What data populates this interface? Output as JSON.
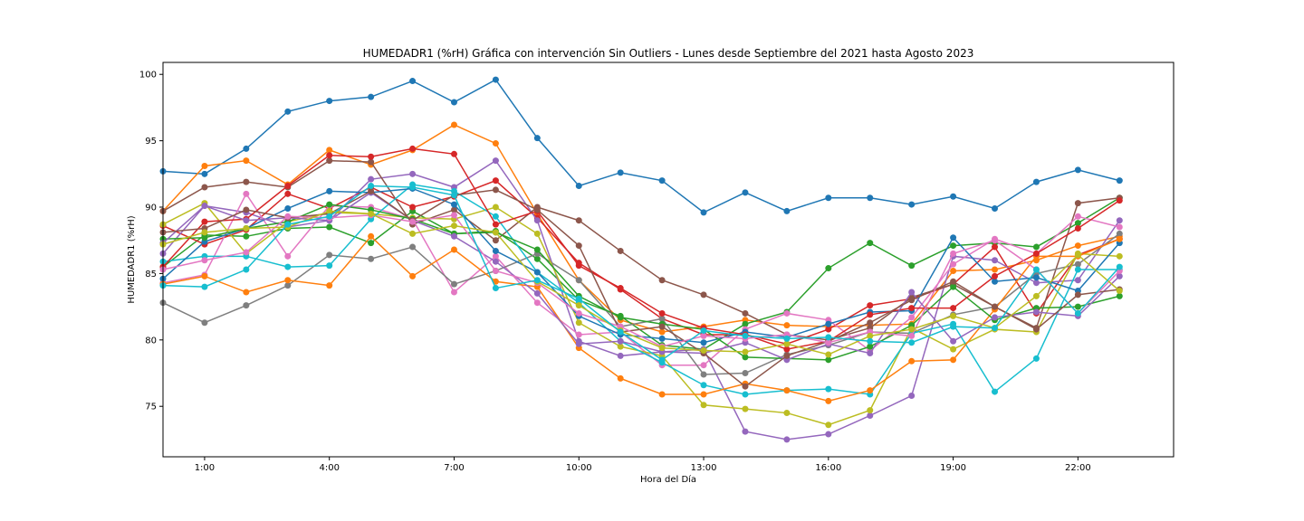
{
  "chart_data": {
    "type": "line",
    "title": "HUMEDADR1 (%rH) Gráfica con intervención Sin Outliers - Lunes desde Septiembre del 2021 hasta Agosto 2023",
    "xlabel": "Hora del Día",
    "ylabel": "HUMEDADR1 (%rH)",
    "xlim": [
      0,
      24.3
    ],
    "ylim": [
      71.2,
      100.9
    ],
    "x_ticks": [
      1,
      4,
      7,
      10,
      13,
      16,
      19,
      22
    ],
    "x_tick_labels": [
      "1:00",
      "4:00",
      "7:00",
      "10:00",
      "13:00",
      "16:00",
      "19:00",
      "22:00"
    ],
    "y_ticks": [
      75,
      80,
      85,
      90,
      95,
      100
    ],
    "y_tick_labels": [
      "75",
      "80",
      "85",
      "90",
      "95",
      "100"
    ],
    "grid": false,
    "legend": "none",
    "x": [
      0,
      1,
      2,
      3,
      4,
      5,
      6,
      7,
      8,
      9,
      10,
      11,
      12,
      13,
      14,
      15,
      16,
      17,
      18,
      19,
      20,
      21,
      22,
      23
    ],
    "series": [
      {
        "color": "#1f77b4",
        "values": [
          92.7,
          92.5,
          94.4,
          97.2,
          98.0,
          98.3,
          99.5,
          97.9,
          99.6,
          95.2,
          91.6,
          92.6,
          92.0,
          89.6,
          91.1,
          89.7,
          90.7,
          90.7,
          90.2,
          90.8,
          89.9,
          91.9,
          92.8,
          92.0
        ]
      },
      {
        "color": "#ff7f0e",
        "values": [
          89.7,
          93.1,
          93.5,
          91.7,
          94.3,
          93.2,
          94.3,
          96.2,
          94.8,
          89.5,
          84.5,
          81.5,
          80.6,
          81.0,
          81.5,
          81.1,
          81.0,
          81.1,
          81.2,
          85.2,
          85.3,
          86.0,
          87.1,
          87.8
        ]
      },
      {
        "color": "#2ca02c",
        "values": [
          85.5,
          87.9,
          87.8,
          88.4,
          88.5,
          87.3,
          89.7,
          88.0,
          88.2,
          86.1,
          83.0,
          81.8,
          79.6,
          79.3,
          81.2,
          82.1,
          85.4,
          87.3,
          85.6,
          87.1,
          87.3,
          87.0,
          88.8,
          90.7
        ]
      },
      {
        "color": "#d62728",
        "values": [
          88.6,
          87.2,
          88.3,
          91.0,
          89.9,
          91.5,
          90.0,
          90.8,
          92.0,
          89.2,
          85.8,
          83.8,
          81.6,
          80.4,
          80.4,
          79.7,
          80.8,
          82.6,
          83.1,
          84.2,
          87.0,
          82.0,
          86.4,
          87.6
        ]
      },
      {
        "color": "#9467bd",
        "values": [
          86.5,
          90.1,
          89.6,
          88.5,
          89.0,
          92.1,
          92.5,
          91.5,
          93.5,
          89.0,
          79.9,
          78.8,
          79.1,
          79.3,
          73.1,
          72.5,
          72.9,
          74.3,
          75.8,
          86.3,
          86.0,
          84.3,
          84.5,
          89.0
        ]
      },
      {
        "color": "#8c564b",
        "values": [
          89.7,
          91.5,
          91.9,
          91.5,
          93.5,
          93.4,
          88.7,
          89.8,
          87.5,
          90.0,
          89.0,
          86.7,
          84.5,
          83.4,
          82.0,
          80.4,
          80.0,
          80.9,
          83.2,
          84.2,
          82.5,
          80.9,
          90.3,
          90.7
        ]
      },
      {
        "color": "#e377c2",
        "values": [
          84.3,
          84.9,
          91.0,
          86.3,
          90.1,
          90.0,
          89.1,
          83.6,
          86.3,
          82.8,
          80.4,
          80.6,
          78.1,
          78.1,
          80.8,
          82.0,
          81.5,
          79.2,
          81.7,
          85.7,
          87.6,
          86.5,
          89.3,
          88.5
        ]
      },
      {
        "color": "#7f7f7f",
        "values": [
          82.8,
          81.3,
          82.6,
          84.1,
          86.4,
          86.1,
          87.0,
          84.2,
          85.2,
          86.5,
          84.5,
          81.0,
          81.6,
          77.4,
          77.5,
          78.9,
          79.6,
          80.6,
          80.5,
          81.9,
          82.5,
          85.0,
          85.7,
          88.0
        ]
      },
      {
        "color": "#bcbd22",
        "values": [
          88.7,
          90.3,
          86.5,
          88.9,
          89.6,
          89.5,
          89.2,
          89.1,
          90.0,
          88.0,
          81.3,
          79.5,
          78.8,
          75.1,
          74.8,
          74.5,
          73.6,
          74.7,
          80.9,
          79.3,
          80.8,
          80.6,
          86.5,
          86.3
        ]
      },
      {
        "color": "#17becf",
        "values": [
          85.9,
          86.3,
          86.3,
          85.5,
          85.6,
          89.1,
          91.7,
          91.2,
          89.3,
          85.1,
          82.8,
          79.9,
          78.3,
          76.6,
          75.9,
          76.2,
          76.3,
          75.9,
          80.5,
          81.2,
          76.1,
          78.6,
          85.3,
          85.3
        ]
      },
      {
        "color": "#1f77b4",
        "values": [
          84.6,
          87.4,
          88.4,
          89.9,
          91.2,
          91.1,
          91.4,
          90.2,
          86.7,
          85.1,
          81.8,
          80.4,
          80.1,
          79.8,
          80.6,
          80.2,
          81.2,
          82.1,
          82.2,
          87.7,
          84.4,
          84.7,
          83.7,
          87.3
        ]
      },
      {
        "color": "#ff7f0e",
        "values": [
          84.2,
          84.8,
          83.6,
          84.5,
          84.1,
          87.8,
          84.8,
          86.8,
          84.4,
          84.0,
          79.4,
          77.1,
          75.9,
          75.9,
          76.7,
          76.2,
          75.4,
          76.2,
          78.4,
          78.5,
          82.3,
          86.3,
          86.3,
          87.6
        ]
      },
      {
        "color": "#2ca02c",
        "values": [
          87.6,
          87.7,
          88.4,
          88.9,
          90.2,
          89.8,
          89.1,
          88.0,
          88.1,
          86.8,
          83.3,
          81.7,
          81.2,
          80.8,
          78.7,
          78.6,
          78.5,
          79.5,
          81.1,
          84.0,
          81.5,
          82.4,
          82.5,
          83.3
        ]
      },
      {
        "color": "#d62728",
        "values": [
          85.5,
          88.9,
          89.1,
          91.6,
          93.9,
          93.8,
          94.4,
          94.0,
          88.7,
          89.7,
          85.6,
          83.9,
          82.0,
          80.9,
          80.4,
          79.3,
          79.9,
          81.9,
          82.4,
          82.4,
          84.8,
          86.5,
          88.4,
          90.5
        ]
      },
      {
        "color": "#9467bd",
        "values": [
          87.3,
          90.1,
          89.0,
          89.2,
          89.0,
          91.1,
          89.0,
          87.8,
          85.9,
          83.5,
          79.7,
          79.9,
          79.1,
          79.0,
          79.8,
          78.5,
          79.7,
          79.0,
          83.6,
          79.9,
          81.7,
          82.1,
          81.8,
          84.8
        ]
      },
      {
        "color": "#8c564b",
        "values": [
          88.1,
          88.4,
          89.8,
          89.2,
          89.5,
          91.2,
          89.0,
          90.9,
          91.3,
          89.8,
          87.1,
          80.6,
          81.0,
          79.0,
          76.5,
          78.8,
          79.9,
          81.3,
          83.0,
          84.4,
          82.5,
          80.8,
          83.4,
          83.8
        ]
      },
      {
        "color": "#e377c2",
        "values": [
          85.3,
          86.0,
          86.6,
          89.3,
          89.2,
          89.4,
          88.9,
          89.4,
          85.2,
          84.3,
          82.0,
          81.0,
          79.5,
          80.3,
          80.1,
          80.4,
          79.8,
          80.6,
          80.3,
          86.5,
          87.5,
          85.3,
          82.0,
          85.2
        ]
      },
      {
        "color": "#bcbd22",
        "values": [
          87.2,
          88.1,
          88.4,
          88.5,
          89.7,
          89.5,
          88.0,
          88.6,
          88.1,
          84.4,
          82.6,
          80.7,
          79.4,
          79.2,
          79.1,
          79.7,
          78.9,
          80.3,
          80.8,
          81.8,
          80.9,
          83.3,
          86.4,
          83.7
        ]
      },
      {
        "color": "#17becf",
        "values": [
          84.1,
          84.0,
          85.3,
          88.7,
          89.3,
          91.6,
          91.5,
          90.9,
          83.9,
          84.5,
          83.1,
          80.6,
          78.5,
          80.7,
          80.3,
          80.1,
          80.2,
          79.9,
          79.8,
          81.0,
          80.9,
          85.3,
          82.0,
          85.5
        ]
      }
    ]
  }
}
